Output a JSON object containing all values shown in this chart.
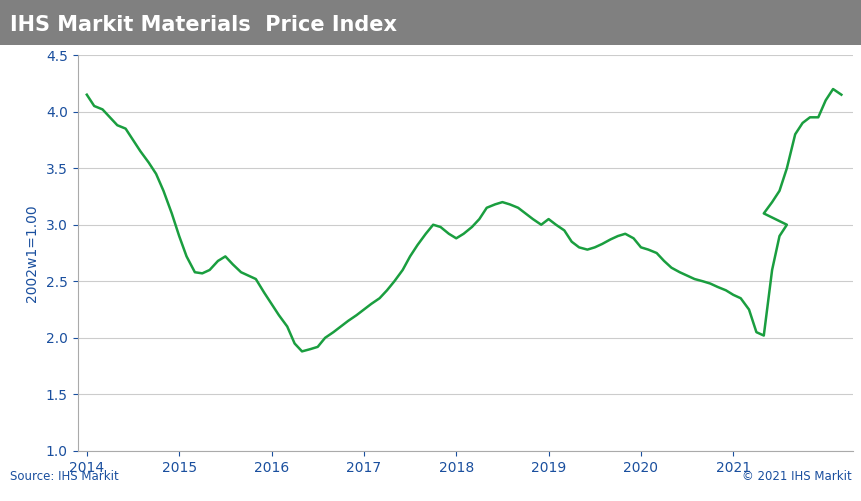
{
  "title": "IHS Markit Materials  Price Index",
  "title_bg_color": "#808080",
  "title_text_color": "#ffffff",
  "ylabel": "2002w1=1.00",
  "source_text": "Source: IHS Markit",
  "copyright_text": "© 2021 IHS Markit",
  "line_color": "#1a9e3f",
  "line_width": 1.8,
  "bg_color": "#ffffff",
  "plot_bg_color": "#ffffff",
  "grid_color": "#cccccc",
  "ylim": [
    1.0,
    4.5
  ],
  "yticks": [
    1.0,
    1.5,
    2.0,
    2.5,
    3.0,
    3.5,
    4.0,
    4.5
  ],
  "footer_text_color": "#1a4f9e",
  "axis_label_color": "#1a4f9e",
  "tick_label_color": "#1a4f9e",
  "x_years": [
    2014,
    2015,
    2016,
    2017,
    2018,
    2019,
    2020,
    2021
  ],
  "time_values": [
    0,
    0.08,
    0.17,
    0.25,
    0.33,
    0.42,
    0.5,
    0.58,
    0.67,
    0.75,
    0.83,
    0.92,
    1,
    1.08,
    1.17,
    1.25,
    1.33,
    1.42,
    1.5,
    1.58,
    1.67,
    1.75,
    1.83,
    1.92,
    2,
    2.08,
    2.17,
    2.25,
    2.33,
    2.42,
    2.5,
    2.58,
    2.67,
    2.75,
    2.83,
    2.92,
    3,
    3.08,
    3.17,
    3.25,
    3.33,
    3.42,
    3.5,
    3.58,
    3.67,
    3.75,
    3.83,
    3.92,
    4,
    4.08,
    4.17,
    4.25,
    4.33,
    4.42,
    4.5,
    4.58,
    4.67,
    4.75,
    4.83,
    4.92,
    5,
    5.08,
    5.17,
    5.25,
    5.33,
    5.42,
    5.5,
    5.58,
    5.67,
    5.75,
    5.83,
    5.92,
    6,
    6.08,
    6.17,
    6.25,
    6.33,
    6.42,
    6.5,
    6.58,
    6.67,
    6.75,
    6.83,
    6.92,
    7,
    7.08,
    7.17,
    7.25,
    7.33,
    7.42,
    7.5,
    7.58
  ],
  "price_values": [
    4.15,
    4.05,
    4.02,
    3.95,
    3.88,
    3.85,
    3.75,
    3.65,
    3.55,
    3.45,
    3.3,
    3.1,
    2.9,
    2.72,
    2.58,
    2.57,
    2.6,
    2.68,
    2.72,
    2.65,
    2.58,
    2.55,
    2.52,
    2.4,
    2.3,
    2.2,
    2.1,
    1.95,
    1.88,
    1.9,
    1.92,
    2.0,
    2.05,
    2.1,
    2.15,
    2.2,
    2.25,
    2.3,
    2.35,
    2.42,
    2.5,
    2.6,
    2.72,
    2.82,
    2.92,
    3.0,
    2.98,
    2.92,
    2.88,
    2.92,
    2.98,
    3.05,
    3.15,
    3.18,
    3.2,
    3.18,
    3.15,
    3.1,
    3.05,
    3.0,
    3.05,
    3.0,
    2.95,
    2.85,
    2.8,
    2.78,
    2.8,
    2.83,
    2.87,
    2.9,
    2.92,
    2.88,
    2.8,
    2.78,
    2.75,
    2.68,
    2.62,
    2.58,
    2.55,
    2.52,
    2.5,
    2.48,
    2.45,
    2.42,
    2.38,
    2.35,
    2.25,
    2.05,
    2.02,
    2.6,
    2.9,
    3.0
  ],
  "price_values2": [
    3.1,
    3.2,
    3.3,
    3.5,
    3.8,
    3.9,
    3.95,
    3.95,
    4.1,
    4.2,
    4.15
  ],
  "time_values2": [
    7.33,
    7.42,
    7.5,
    7.58,
    7.67,
    7.75,
    7.83,
    7.92,
    8.0,
    8.08,
    8.17
  ]
}
